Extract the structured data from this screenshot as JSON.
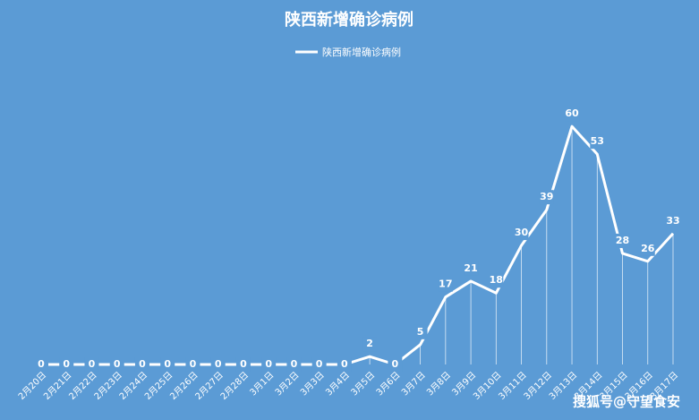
{
  "chart_data": {
    "type": "line",
    "title": "陕西新增确诊病例",
    "categories": [
      "2月20日",
      "2月21日",
      "2月22日",
      "2月23日",
      "2月24日",
      "2月25日",
      "2月26日",
      "2月27日",
      "2月28日",
      "3月1日",
      "3月2日",
      "3月3日",
      "3月4日",
      "3月5日",
      "3月6日",
      "3月7日",
      "3月8日",
      "3月9日",
      "3月10日",
      "3月11日",
      "3月12日",
      "3月13日",
      "3月14日",
      "3月15日",
      "3月16日",
      "3月17日"
    ],
    "series": [
      {
        "name": "陕西新增确诊病例",
        "color": "#ffffff",
        "values": [
          0,
          0,
          0,
          0,
          0,
          0,
          0,
          0,
          0,
          0,
          0,
          0,
          0,
          2,
          0,
          5,
          17,
          21,
          18,
          30,
          39,
          60,
          53,
          28,
          26,
          33
        ]
      }
    ],
    "ylim": [
      0,
      65
    ],
    "drop_lines": true,
    "legend": "top",
    "watermark": "搜狐号@守望食安"
  }
}
